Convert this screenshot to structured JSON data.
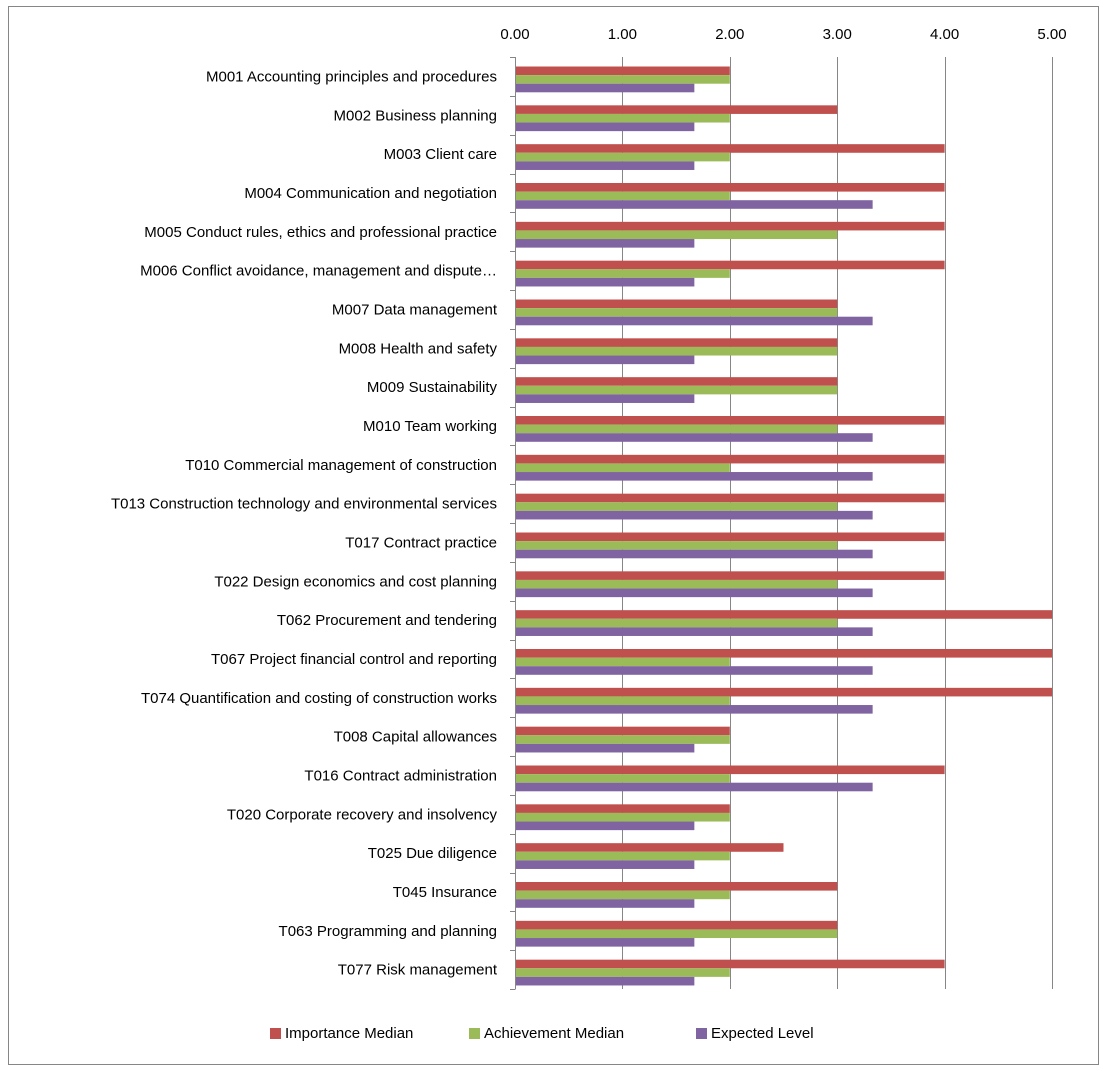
{
  "chart_data": {
    "type": "bar",
    "orientation": "horizontal",
    "title": "",
    "xlabel": "",
    "ylabel": "",
    "xlim": [
      0,
      5
    ],
    "x_ticks": [
      "0.00",
      "1.00",
      "2.00",
      "3.00",
      "4.00",
      "5.00"
    ],
    "x_axis_position": "top",
    "grid": true,
    "legend_position": "bottom",
    "categories": [
      "M001 Accounting principles and procedures",
      "M002 Business planning",
      "M003 Client care",
      "M004 Communication and negotiation",
      "M005 Conduct rules, ethics and professional practice",
      "M006 Conflict avoidance, management and dispute…",
      "M007 Data management",
      "M008 Health and safety",
      "M009 Sustainability",
      "M010 Team working",
      "T010 Commercial management of construction",
      "T013 Construction technology and environmental services",
      "T017 Contract practice",
      "T022 Design economics and cost planning",
      "T062 Procurement and tendering",
      "T067 Project financial control and reporting",
      "T074 Quantification and costing of construction works",
      "T008 Capital allowances",
      "T016 Contract administration",
      "T020 Corporate recovery and insolvency",
      "T025 Due diligence",
      "T045 Insurance",
      "T063 Programming and planning",
      "T077 Risk management"
    ],
    "series": [
      {
        "name": "Importance Median",
        "color": "#c0504d",
        "values": [
          2,
          3,
          4,
          4,
          4,
          4,
          3,
          3,
          3,
          4,
          4,
          4,
          4,
          4,
          5,
          5,
          5,
          2,
          4,
          2,
          2.5,
          3,
          3,
          4
        ]
      },
      {
        "name": "Achievement Median",
        "color": "#9bbb59",
        "values": [
          2,
          2,
          2,
          2,
          3,
          2,
          3,
          3,
          3,
          3,
          2,
          3,
          3,
          3,
          3,
          2,
          2,
          2,
          2,
          2,
          2,
          2,
          3,
          2
        ]
      },
      {
        "name": "Expected Level",
        "color": "#8064a2",
        "values": [
          1.67,
          1.67,
          1.67,
          3.33,
          1.67,
          1.67,
          3.33,
          1.67,
          1.67,
          3.33,
          3.33,
          3.33,
          3.33,
          3.33,
          3.33,
          3.33,
          3.33,
          1.67,
          3.33,
          1.67,
          1.67,
          1.67,
          1.67,
          1.67
        ]
      }
    ]
  }
}
